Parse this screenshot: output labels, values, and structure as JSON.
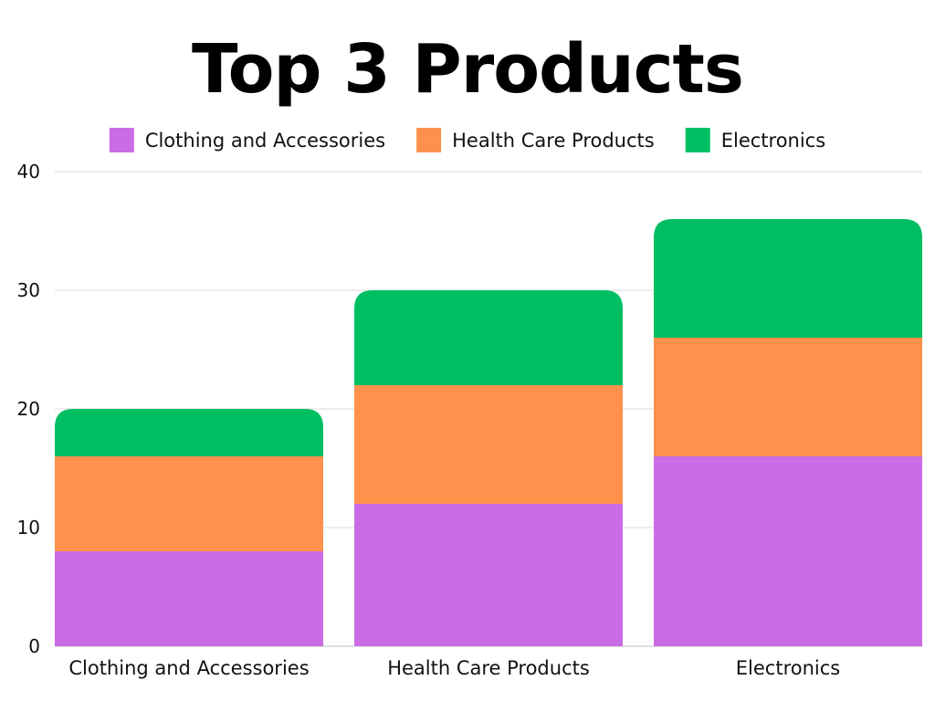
{
  "chart_data": {
    "type": "bar",
    "stacked": true,
    "title": "Top 3 Products",
    "categories": [
      "Clothing and Accessories",
      "Health Care Products",
      "Electronics"
    ],
    "series": [
      {
        "name": "Clothing and Accessories",
        "color": "#c96ce6",
        "values": [
          8,
          12,
          16
        ]
      },
      {
        "name": "Health Care Products",
        "color": "#ff914d",
        "values": [
          8,
          10,
          10
        ]
      },
      {
        "name": "Electronics",
        "color": "#00bf63",
        "values": [
          4,
          8,
          10
        ]
      }
    ],
    "ylim": [
      0,
      40
    ],
    "yticks": [
      0,
      10,
      20,
      30,
      40
    ],
    "grid": true,
    "legend_position": "top"
  }
}
